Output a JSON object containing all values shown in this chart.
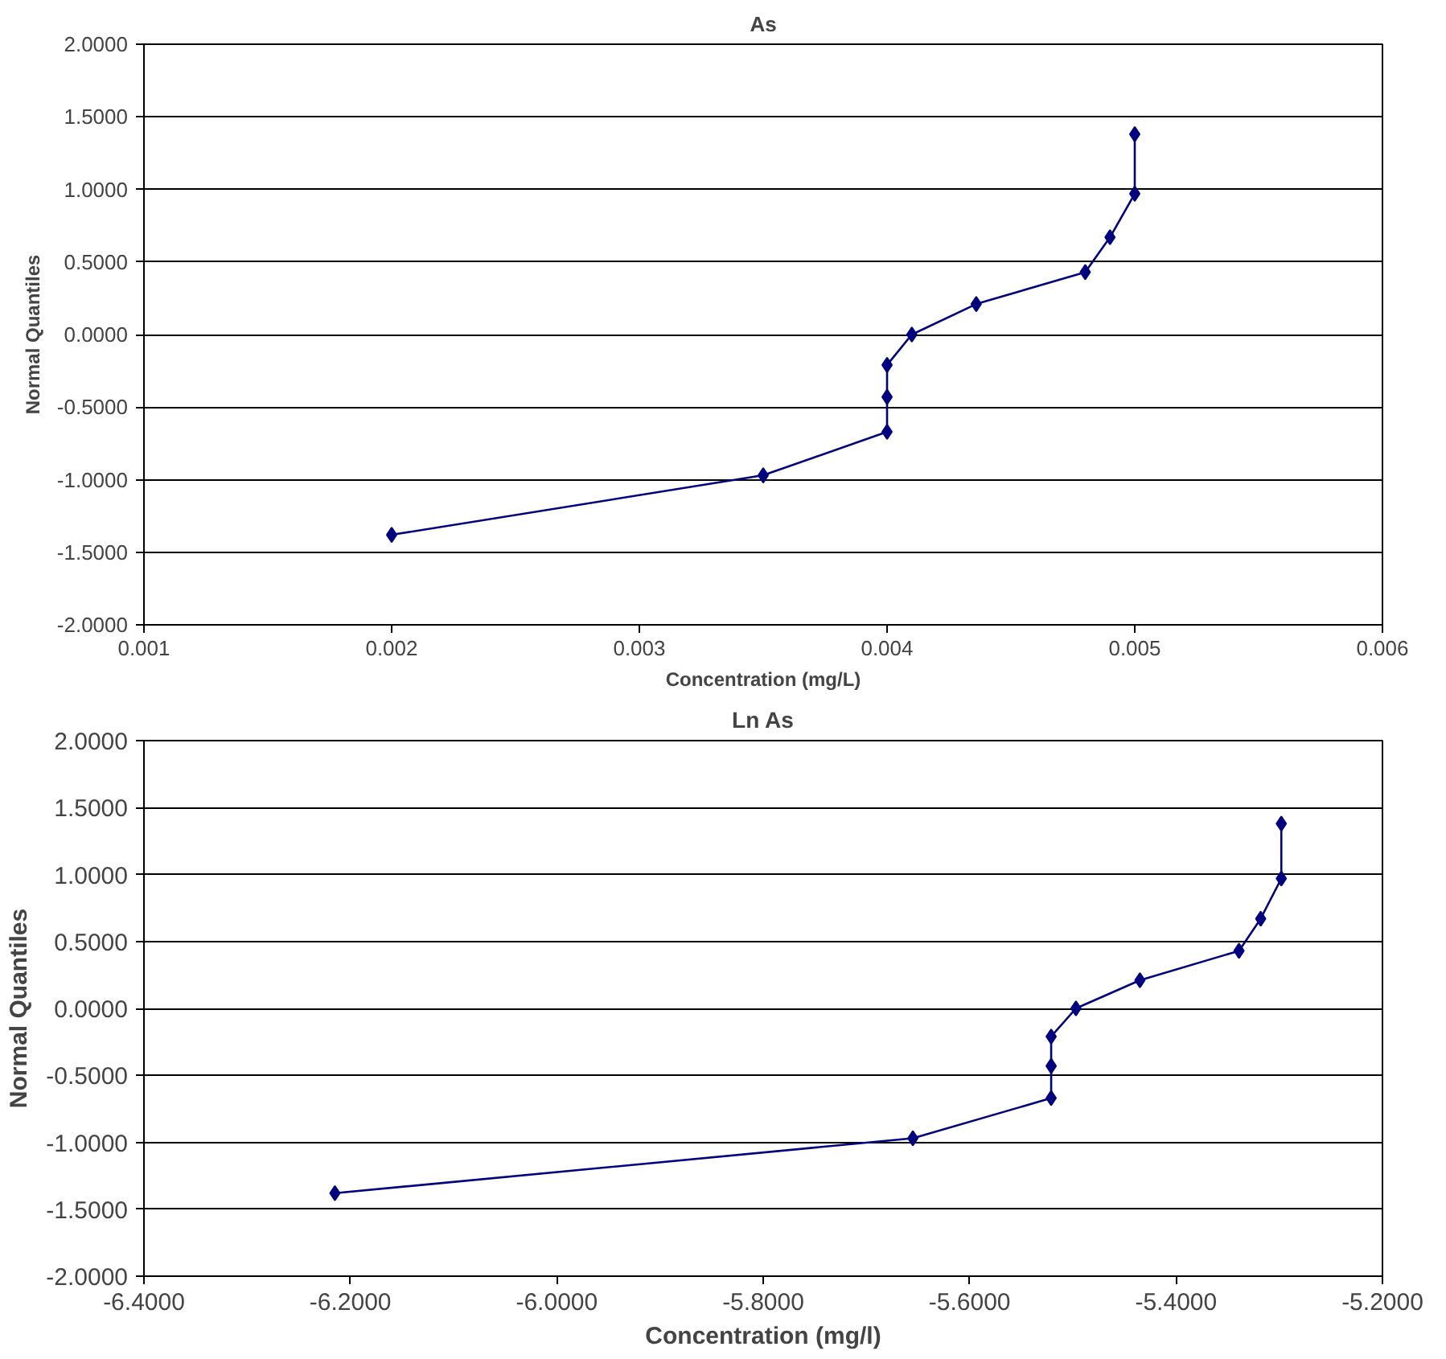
{
  "chart_data": [
    {
      "type": "line",
      "title": "As",
      "xlabel": "Concentration (mg/L)",
      "ylabel": "Normal Quantiles",
      "marker": "diamond",
      "line_style": "solid",
      "grid": "y",
      "xlim": [
        0.001,
        0.006
      ],
      "xticks": [
        0.001,
        0.002,
        0.003,
        0.004,
        0.005,
        0.006
      ],
      "ylim": [
        -2,
        2
      ],
      "yticks": [
        {
          "value": -2,
          "label": "-2.0000"
        },
        {
          "value": -1.5,
          "label": "-1.5000"
        },
        {
          "value": -1,
          "label": "-1.0000"
        },
        {
          "value": -0.5,
          "label": "-0.5000"
        },
        {
          "value": 0,
          "label": "0.0000"
        },
        {
          "value": 0.5,
          "label": "0.5000"
        },
        {
          "value": 1,
          "label": "1.0000"
        },
        {
          "value": 1.5,
          "label": "1.5000"
        },
        {
          "value": 2,
          "label": "2.0000"
        }
      ],
      "series": [
        {
          "color": "#000080",
          "x": [
            0.002,
            0.0035,
            0.004,
            0.004,
            0.004,
            0.0041,
            0.00436,
            0.0048,
            0.0049,
            0.005,
            0.005
          ],
          "values": [
            -1.38,
            -0.97,
            -0.67,
            -0.43,
            -0.21,
            0.0,
            0.21,
            0.43,
            0.67,
            0.97,
            1.38
          ]
        }
      ]
    },
    {
      "type": "line",
      "title": "Ln As",
      "xlabel": "Concentration (mg/l)",
      "ylabel": "Normal Quantiles",
      "marker": "diamond",
      "line_style": "solid",
      "grid": "y",
      "xlim": [
        -6.4,
        -5.2
      ],
      "xticks": [
        {
          "value": -6.4,
          "label": "-6.4000"
        },
        {
          "value": -6.2,
          "label": "-6.2000"
        },
        {
          "value": -6.0,
          "label": "-6.0000"
        },
        {
          "value": -5.8,
          "label": "-5.8000"
        },
        {
          "value": -5.6,
          "label": "-5.6000"
        },
        {
          "value": -5.4,
          "label": "-5.4000"
        },
        {
          "value": -5.2,
          "label": "-5.2000"
        }
      ],
      "ylim": [
        -2,
        2
      ],
      "yticks": [
        {
          "value": -2,
          "label": "-2.0000"
        },
        {
          "value": -1.5,
          "label": "-1.5000"
        },
        {
          "value": -1,
          "label": "-1.0000"
        },
        {
          "value": -0.5,
          "label": "-0.5000"
        },
        {
          "value": 0,
          "label": "0.0000"
        },
        {
          "value": 0.5,
          "label": "0.5000"
        },
        {
          "value": 1,
          "label": "1.0000"
        },
        {
          "value": 1.5,
          "label": "1.5000"
        },
        {
          "value": 2,
          "label": "2.0000"
        }
      ],
      "series": [
        {
          "color": "#000080",
          "x": [
            -6.215,
            -5.655,
            -5.521,
            -5.521,
            -5.521,
            -5.497,
            -5.435,
            -5.339,
            -5.318,
            -5.298,
            -5.298
          ],
          "values": [
            -1.38,
            -0.97,
            -0.67,
            -0.43,
            -0.21,
            0.0,
            0.21,
            0.43,
            0.67,
            0.97,
            1.38
          ]
        }
      ]
    }
  ]
}
